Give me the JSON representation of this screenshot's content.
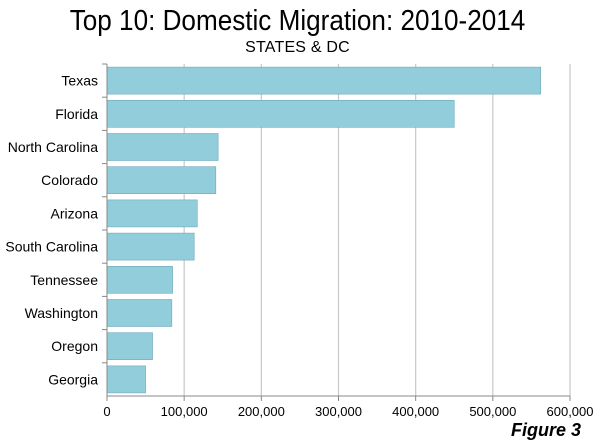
{
  "chart_data": {
    "type": "bar",
    "orientation": "horizontal",
    "title": "Top 10: Domestic Migration: 2010-2014",
    "subtitle": "STATES & DC",
    "categories": [
      "Texas",
      "Florida",
      "North Carolina",
      "Colorado",
      "Arizona",
      "South Carolina",
      "Tennessee",
      "Washington",
      "Oregon",
      "Georgia"
    ],
    "values": [
      562000,
      450000,
      144000,
      141000,
      117000,
      113000,
      85000,
      84000,
      59000,
      50000
    ],
    "xlim": [
      0,
      600000
    ],
    "xticks": [
      "0",
      "100,000",
      "200,000",
      "300,000",
      "400,000",
      "500,000",
      "600,000"
    ],
    "xtick_values": [
      0,
      100000,
      200000,
      300000,
      400000,
      500000,
      600000
    ],
    "grid": true,
    "bar_color": "#92cddc",
    "bar_edge_color": "#6fa8bb",
    "grid_color": "#c8c8c8"
  },
  "footnote": "Figure 3"
}
